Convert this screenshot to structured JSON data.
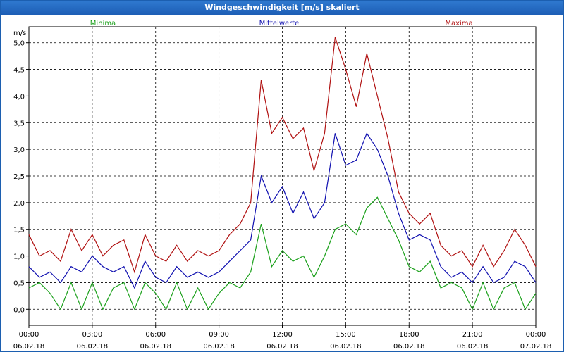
{
  "window": {
    "title": "Windgeschwindigkeit [m/s] skaliert"
  },
  "chart_data": {
    "type": "line",
    "title": "Windgeschwindigkeit [m/s] skaliert",
    "ylabel": "m/s",
    "ylim": [
      -0.3,
      5.3
    ],
    "xlim": [
      0,
      24
    ],
    "grid": true,
    "legend": "top",
    "y_ticks": [
      "0,0",
      "0,5",
      "1,0",
      "1,5",
      "2,0",
      "2,5",
      "3,0",
      "3,5",
      "4,0",
      "4,5",
      "5,0"
    ],
    "x_ticks": [
      {
        "time": "00:00",
        "date": "06.02.18"
      },
      {
        "time": "03:00",
        "date": "06.02.18"
      },
      {
        "time": "06:00",
        "date": "06.02.18"
      },
      {
        "time": "09:00",
        "date": "06.02.18"
      },
      {
        "time": "12:00",
        "date": "06.02.18"
      },
      {
        "time": "15:00",
        "date": "06.02.18"
      },
      {
        "time": "18:00",
        "date": "06.02.18"
      },
      {
        "time": "21:00",
        "date": "06.02.18"
      },
      {
        "time": "00:00",
        "date": "07.02.18"
      }
    ],
    "x": [
      0,
      0.5,
      1,
      1.5,
      2,
      2.5,
      3,
      3.5,
      4,
      4.5,
      5,
      5.5,
      6,
      6.5,
      7,
      7.5,
      8,
      8.5,
      9,
      9.5,
      10,
      10.5,
      11,
      11.5,
      12,
      12.5,
      13,
      13.5,
      14,
      14.5,
      15,
      15.5,
      16,
      16.5,
      17,
      17.5,
      18,
      18.5,
      19,
      19.5,
      20,
      20.5,
      21,
      21.5,
      22,
      22.5,
      23,
      23.5,
      24
    ],
    "series": [
      {
        "name": "Minima",
        "color": "#1aa01a",
        "values": [
          0.4,
          0.5,
          0.3,
          0.0,
          0.5,
          0.0,
          0.5,
          0.0,
          0.4,
          0.5,
          0.0,
          0.5,
          0.3,
          0.0,
          0.5,
          0.0,
          0.4,
          0.0,
          0.3,
          0.5,
          0.4,
          0.7,
          1.6,
          0.8,
          1.1,
          0.9,
          1.0,
          0.6,
          1.0,
          1.5,
          1.6,
          1.4,
          1.9,
          2.1,
          1.7,
          1.3,
          0.8,
          0.7,
          0.9,
          0.4,
          0.5,
          0.4,
          0.0,
          0.5,
          0.0,
          0.4,
          0.5,
          0.0,
          0.3
        ]
      },
      {
        "name": "Mittelwerte",
        "color": "#1010b0",
        "values": [
          0.8,
          0.6,
          0.7,
          0.5,
          0.8,
          0.7,
          1.0,
          0.8,
          0.7,
          0.8,
          0.4,
          0.9,
          0.6,
          0.5,
          0.8,
          0.6,
          0.7,
          0.6,
          0.7,
          0.9,
          1.1,
          1.3,
          2.5,
          2.0,
          2.3,
          1.8,
          2.2,
          1.7,
          2.0,
          3.3,
          2.7,
          2.8,
          3.3,
          3.0,
          2.5,
          1.8,
          1.3,
          1.4,
          1.3,
          0.8,
          0.6,
          0.7,
          0.5,
          0.8,
          0.5,
          0.6,
          0.9,
          0.8,
          0.5
        ]
      },
      {
        "name": "Maxima",
        "color": "#b01010",
        "values": [
          1.4,
          1.0,
          1.1,
          0.9,
          1.5,
          1.1,
          1.4,
          1.0,
          1.2,
          1.3,
          0.7,
          1.4,
          1.0,
          0.9,
          1.2,
          0.9,
          1.1,
          1.0,
          1.1,
          1.4,
          1.6,
          2.0,
          4.3,
          3.3,
          3.6,
          3.2,
          3.4,
          2.6,
          3.3,
          5.1,
          4.5,
          3.8,
          4.8,
          4.0,
          3.2,
          2.2,
          1.8,
          1.6,
          1.8,
          1.2,
          1.0,
          1.1,
          0.8,
          1.2,
          0.8,
          1.1,
          1.5,
          1.2,
          0.8
        ]
      }
    ]
  }
}
